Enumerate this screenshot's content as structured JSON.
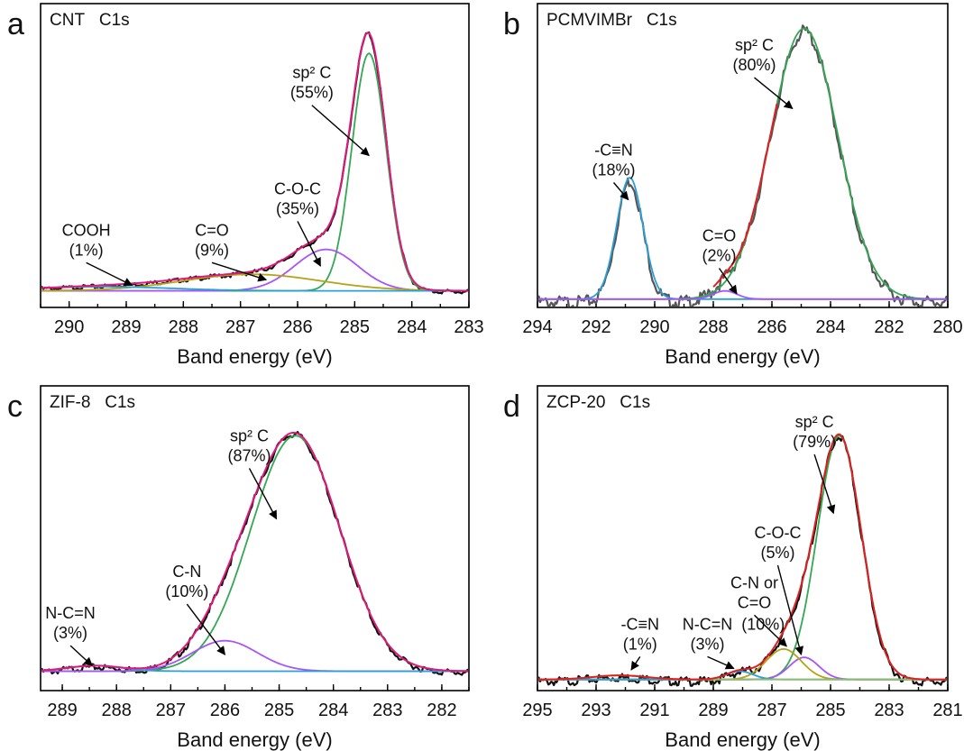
{
  "chart_data": [
    {
      "panel": "a",
      "type": "line",
      "title": "CNT",
      "subtitle": "C1s",
      "xlabel": "Band energy (eV)",
      "xlim": [
        290.5,
        283
      ],
      "ylim": [
        0,
        1.1
      ],
      "xticks": [
        290,
        289,
        288,
        287,
        286,
        285,
        284,
        283
      ],
      "baseline": 0.06,
      "experimental": {
        "color": "#111111",
        "noise": 0.004
      },
      "envelope": {
        "color": "#e0197a"
      },
      "components": [
        {
          "label": "sp² C",
          "percent": "(55%)",
          "center": 284.75,
          "height": 0.86,
          "width": 0.3,
          "color": "#33a852"
        },
        {
          "label": "C-O-C",
          "percent": "(35%)",
          "center": 285.5,
          "height": 0.15,
          "width": 0.55,
          "color": "#a855f7"
        },
        {
          "label": "C=O",
          "percent": "(9%)",
          "center": 286.8,
          "height": 0.06,
          "width": 1.2,
          "color": "#b5a215"
        },
        {
          "label": "COOH",
          "percent": "(1%)",
          "center": 289.4,
          "height": 0.015,
          "width": 1.2,
          "color": "#2b9fd8"
        }
      ],
      "annotations": [
        {
          "lines": [
            "sp² C",
            "(55%)"
          ],
          "tx": 285.75,
          "ty": 0.83,
          "ax": 284.75,
          "ay": 0.55
        },
        {
          "lines": [
            "C-O-C",
            "(35%)"
          ],
          "tx": 286.0,
          "ty": 0.41,
          "ax": 285.6,
          "ay": 0.15
        },
        {
          "lines": [
            "C=O",
            "(9%)"
          ],
          "tx": 287.5,
          "ty": 0.26,
          "ax": 286.55,
          "ay": 0.1
        },
        {
          "lines": [
            "COOH",
            "(1%)"
          ],
          "tx": 289.7,
          "ty": 0.26,
          "ax": 288.9,
          "ay": 0.08
        }
      ]
    },
    {
      "panel": "b",
      "type": "line",
      "title": "PCMVIMBr",
      "subtitle": "C1s",
      "xlabel": "Band energy (eV)",
      "xlim": [
        294,
        280
      ],
      "ylim": [
        0,
        1.1
      ],
      "xticks": [
        294,
        292,
        290,
        288,
        286,
        284,
        282,
        280
      ],
      "baseline": 0.03,
      "experimental": {
        "color": "#555555",
        "noise": 0.012
      },
      "envelope": {
        "color": "#e02020",
        "from": 288.0,
        "to": 285.8
      },
      "components": [
        {
          "label": "sp² C",
          "percent": "(80%)",
          "center": 284.9,
          "height": 0.98,
          "width": 1.15,
          "color": "#33a852"
        },
        {
          "label": "-C≡N",
          "percent": "(18%)",
          "center": 290.85,
          "height": 0.44,
          "width": 0.45,
          "color": "#2b9fd8"
        },
        {
          "label": "C=O",
          "percent": "(2%)",
          "center": 287.6,
          "height": 0.03,
          "width": 0.4,
          "color": "#a855f7"
        }
      ],
      "annotations": [
        {
          "lines": [
            "sp² C",
            "(80%)"
          ],
          "tx": 286.6,
          "ty": 0.93,
          "ax": 285.3,
          "ay": 0.72
        },
        {
          "lines": [
            "-C≡N",
            "(18%)"
          ],
          "tx": 291.4,
          "ty": 0.55,
          "ax": 290.9,
          "ay": 0.39
        },
        {
          "lines": [
            "C=O",
            "(2%)"
          ],
          "tx": 287.8,
          "ty": 0.24,
          "ax": 287.2,
          "ay": 0.05
        }
      ]
    },
    {
      "panel": "c",
      "type": "line",
      "title": "ZIF-8",
      "subtitle": "C1s",
      "xlabel": "Band energy (eV)",
      "xlim": [
        289.4,
        281.5
      ],
      "ylim": [
        0,
        1.1
      ],
      "xticks": [
        289,
        288,
        287,
        286,
        285,
        284,
        283,
        282
      ],
      "baseline": 0.07,
      "experimental": {
        "color": "#111111",
        "noise": 0.006
      },
      "envelope": {
        "color": "#e0197a"
      },
      "components": [
        {
          "label": "sp² C",
          "percent": "(87%)",
          "center": 284.7,
          "height": 0.85,
          "width": 0.82,
          "color": "#33a852"
        },
        {
          "label": "C-N",
          "percent": "(10%)",
          "center": 286.0,
          "height": 0.11,
          "width": 0.6,
          "color": "#a855f7"
        },
        {
          "label": "N-C=N",
          "percent": "(3%)",
          "center": 288.4,
          "height": 0.02,
          "width": 0.5,
          "color": "#2b9fd8"
        }
      ],
      "annotations": [
        {
          "lines": [
            "sp² C",
            "(87%)"
          ],
          "tx": 285.55,
          "ty": 0.9,
          "ax": 285.05,
          "ay": 0.62
        },
        {
          "lines": [
            "C-N",
            "(10%)"
          ],
          "tx": 286.7,
          "ty": 0.41,
          "ax": 286.0,
          "ay": 0.13
        },
        {
          "lines": [
            "N-C=N",
            "(3%)"
          ],
          "tx": 288.85,
          "ty": 0.26,
          "ax": 288.45,
          "ay": 0.09
        }
      ]
    },
    {
      "panel": "d",
      "type": "line",
      "title": "ZCP-20",
      "subtitle": "C1s",
      "xlabel": "Band energy (eV)",
      "xlim": [
        295,
        281
      ],
      "ylim": [
        0,
        1.1
      ],
      "xticks": [
        295,
        293,
        291,
        289,
        287,
        285,
        283,
        281
      ],
      "baseline": 0.04,
      "experimental": {
        "color": "#111111",
        "noise": 0.008
      },
      "envelope": {
        "color": "#e02020"
      },
      "components": [
        {
          "label": "sp² C",
          "percent": "(79%)",
          "center": 284.7,
          "height": 0.88,
          "width": 0.75,
          "color": "#33a852"
        },
        {
          "label": "C-O-C",
          "percent": "(5%)",
          "center": 285.9,
          "height": 0.08,
          "width": 0.5,
          "color": "#a855f7"
        },
        {
          "label": "C-N or C=O",
          "percent": "(10%)",
          "center": 286.6,
          "height": 0.11,
          "width": 0.6,
          "color": "#b5a215"
        },
        {
          "label": "N-C=N",
          "percent": "(3%)",
          "center": 288.1,
          "height": 0.03,
          "width": 0.45,
          "color": "#2b9fd8"
        },
        {
          "label": "-C≡N",
          "percent": "(1%)",
          "center": 292.2,
          "height": 0.015,
          "width": 0.9,
          "color": "#8fbc6a"
        }
      ],
      "annotations": [
        {
          "lines": [
            "sp² C",
            "(79%)"
          ],
          "tx": 285.55,
          "ty": 0.95,
          "ax": 284.9,
          "ay": 0.64
        },
        {
          "lines": [
            "C-O-C",
            "(5%)"
          ],
          "tx": 286.8,
          "ty": 0.55,
          "ax": 286.0,
          "ay": 0.13
        },
        {
          "lines": [
            "C-N or",
            "C=O"
          ],
          "tx": 287.6,
          "ty": 0.37,
          "ax": 286.5,
          "ay": 0.16
        },
        {
          "lines": [
            "(10%)"
          ],
          "tx": 287.3,
          "ty": 0.22,
          "ax": null,
          "ay": null
        },
        {
          "lines": [
            "N-C=N",
            "(3%)"
          ],
          "tx": 289.2,
          "ty": 0.22,
          "ax": 288.3,
          "ay": 0.08
        },
        {
          "lines": [
            "-C≡N",
            "(1%)"
          ],
          "tx": 291.5,
          "ty": 0.22,
          "ax": 291.8,
          "ay": 0.075
        }
      ]
    }
  ]
}
